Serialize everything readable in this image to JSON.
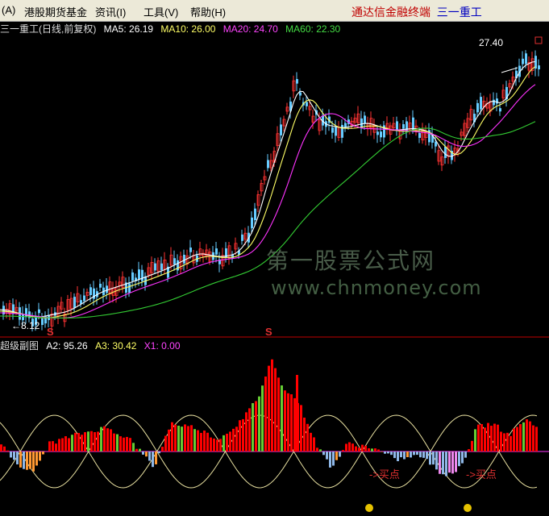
{
  "menu": {
    "items": [
      "(A)",
      "港股期货基金",
      "资讯(I)",
      "工具(V)",
      "帮助(H)"
    ],
    "brand": "通达信金融终端",
    "stock": "三一重工"
  },
  "chart_header": {
    "title": "三一重工(日线,前复权)",
    "ma5": "MA5: 26.19",
    "ma10": "MA10: 26.00",
    "ma20": "MA20: 24.70",
    "ma60": "MA60: 22.30"
  },
  "sub_header": {
    "title": "超级副图",
    "a2": "A2: 95.26",
    "a3": "A3: 30.42",
    "x1": "X1: 0.00"
  },
  "annotations": {
    "high": "27.40",
    "low": "8.12",
    "signal": "S",
    "buy1": "->买点",
    "buy2": "->买点"
  },
  "watermark": {
    "line1": "第一股票公式网",
    "line2": "www.chnmoney.com"
  },
  "colors": {
    "ma5": "#ffffff",
    "ma10": "#ffff66",
    "ma20": "#ff33ff",
    "ma60": "#33cc33",
    "up": "#ff3333",
    "down": "#66ccff",
    "bar_red": "#ff0000",
    "bar_blue": "#8fb8e8"
  },
  "chart_data": {
    "type": "candlestick",
    "price_range": [
      8.12,
      27.4
    ],
    "ma_last": {
      "MA5": 26.19,
      "MA10": 26.0,
      "MA20": 24.7,
      "MA60": 22.3
    },
    "sub_values": {
      "A2": 95.26,
      "A3": 30.42,
      "X1": 0.0
    }
  }
}
